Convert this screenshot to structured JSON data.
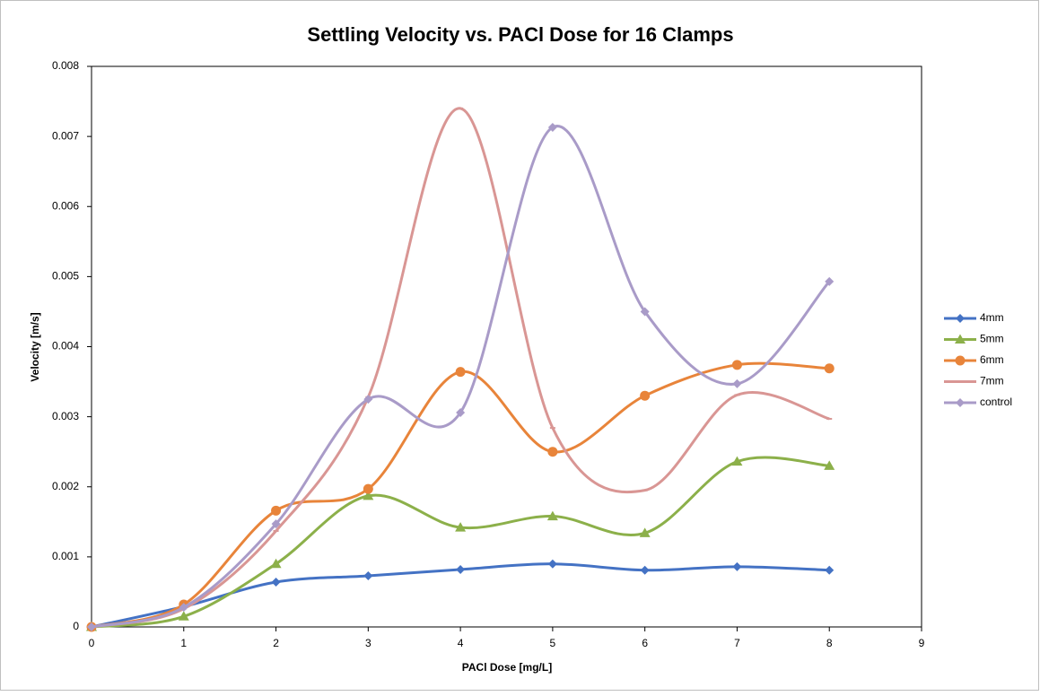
{
  "chart_data": {
    "type": "line",
    "title": "Settling Velocity vs. PACl Dose for 16 Clamps",
    "x_label": "PACl Dose [mg/L]",
    "y_label": "Velocity [m/s]",
    "x": [
      0,
      1,
      2,
      3,
      4,
      5,
      6,
      7,
      8
    ],
    "xlim": [
      0,
      9
    ],
    "ylim": [
      0,
      0.008
    ],
    "xticks": [
      0,
      1,
      2,
      3,
      4,
      5,
      6,
      7,
      8,
      9
    ],
    "yticks": [
      0,
      0.001,
      0.002,
      0.003,
      0.004,
      0.005,
      0.006,
      0.007,
      0.008
    ],
    "smooth": true,
    "grid": false,
    "legend": "right",
    "series": [
      {
        "name": "4mm",
        "color": "#4472c4",
        "marker": "diamond",
        "values": [
          0,
          0.00029,
          0.00064,
          0.00073,
          0.00082,
          0.0009,
          0.00081,
          0.00086,
          0.00081
        ]
      },
      {
        "name": "5mm",
        "color": "#8cb04a",
        "marker": "triangle",
        "values": [
          0,
          0.00015,
          0.0009,
          0.00187,
          0.00142,
          0.00158,
          0.00134,
          0.00236,
          0.0023
        ]
      },
      {
        "name": "6mm",
        "color": "#e8843a",
        "marker": "circle",
        "values": [
          0,
          0.00032,
          0.00166,
          0.00197,
          0.00364,
          0.0025,
          0.0033,
          0.00374,
          0.00369
        ]
      },
      {
        "name": "7mm",
        "color": "#d99694",
        "marker": "dash",
        "values": [
          0,
          0.00026,
          0.00137,
          0.00328,
          0.0074,
          0.00284,
          0.00195,
          0.00331,
          0.00297
        ]
      },
      {
        "name": "control",
        "color": "#a99bc8",
        "marker": "diamond",
        "values": [
          0,
          0.00028,
          0.00147,
          0.00325,
          0.00306,
          0.00713,
          0.0045,
          0.00347,
          0.00493
        ]
      }
    ]
  }
}
